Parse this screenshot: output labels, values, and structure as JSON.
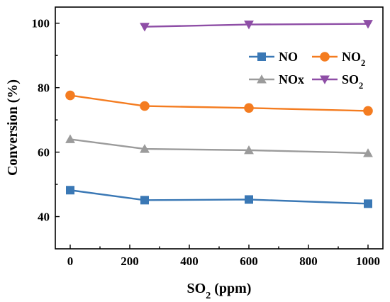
{
  "chart_data": {
    "type": "line",
    "x": [
      0,
      250,
      600,
      1000
    ],
    "series": [
      {
        "name": "NO",
        "values": [
          48.2,
          45.1,
          45.3,
          44.0
        ],
        "color": "#3a78b5",
        "marker": "square"
      },
      {
        "name": "NO2",
        "values": [
          77.6,
          74.3,
          73.7,
          72.8
        ],
        "color": "#f47c20",
        "marker": "circle"
      },
      {
        "name": "NOx",
        "values": [
          64.0,
          61.0,
          60.6,
          59.7
        ],
        "color": "#9b9b9b",
        "marker": "triangle-up"
      },
      {
        "name": "SO2",
        "values": [
          null,
          98.9,
          99.6,
          99.8
        ],
        "color": "#8e4ea6",
        "marker": "triangle-down"
      }
    ],
    "xlabel": "SO2 (ppm)",
    "ylabel": "Conversion (%)",
    "xlim": [
      -50,
      1050
    ],
    "ylim": [
      30,
      105
    ],
    "x_ticks": [
      "0",
      "200",
      "400",
      "600",
      "800",
      "1000"
    ],
    "y_ticks": [
      "40",
      "60",
      "80",
      "100"
    ],
    "legend_position": "top-right",
    "grid": false
  }
}
